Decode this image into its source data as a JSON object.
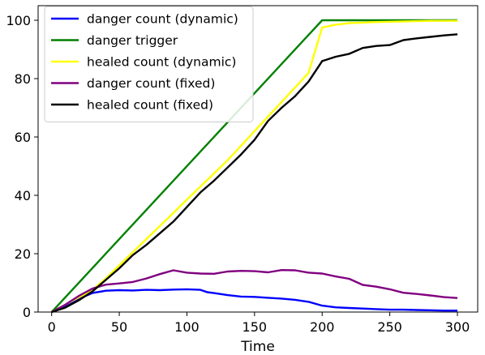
{
  "chart_data": {
    "type": "line",
    "xlabel": "Time",
    "ylabel": "",
    "xlim": [
      -10,
      315
    ],
    "ylim": [
      0,
      105
    ],
    "xticks": [
      0,
      50,
      100,
      150,
      200,
      250,
      300
    ],
    "yticks": [
      0,
      20,
      40,
      60,
      80,
      100
    ],
    "grid": false,
    "legend_position": "top-left",
    "series": [
      {
        "name": "danger count (dynamic)",
        "color": "#0000ff",
        "points": [
          [
            0,
            0
          ],
          [
            10,
            2
          ],
          [
            20,
            4.5
          ],
          [
            30,
            6.5
          ],
          [
            40,
            7.3
          ],
          [
            50,
            7.5
          ],
          [
            60,
            7.4
          ],
          [
            70,
            7.6
          ],
          [
            80,
            7.5
          ],
          [
            90,
            7.7
          ],
          [
            100,
            7.8
          ],
          [
            110,
            7.6
          ],
          [
            115,
            6.8
          ],
          [
            120,
            6.5
          ],
          [
            130,
            5.8
          ],
          [
            140,
            5.3
          ],
          [
            150,
            5.2
          ],
          [
            160,
            4.9
          ],
          [
            170,
            4.6
          ],
          [
            180,
            4.2
          ],
          [
            190,
            3.5
          ],
          [
            200,
            2.2
          ],
          [
            210,
            1.6
          ],
          [
            220,
            1.4
          ],
          [
            230,
            1.2
          ],
          [
            240,
            1.0
          ],
          [
            250,
            0.8
          ],
          [
            260,
            0.8
          ],
          [
            270,
            0.7
          ],
          [
            280,
            0.6
          ],
          [
            290,
            0.5
          ],
          [
            300,
            0.5
          ]
        ]
      },
      {
        "name": "danger trigger",
        "color": "#008000",
        "points": [
          [
            0,
            0
          ],
          [
            200,
            100
          ],
          [
            300,
            100
          ]
        ]
      },
      {
        "name": "healed count (dynamic)",
        "color": "#ffff00",
        "points": [
          [
            0,
            0
          ],
          [
            10,
            2.5
          ],
          [
            20,
            5
          ],
          [
            30,
            7.5
          ],
          [
            40,
            11.5
          ],
          [
            50,
            16
          ],
          [
            60,
            20.5
          ],
          [
            70,
            25
          ],
          [
            80,
            29.5
          ],
          [
            90,
            34
          ],
          [
            100,
            38.5
          ],
          [
            110,
            43
          ],
          [
            120,
            47.5
          ],
          [
            130,
            52
          ],
          [
            140,
            57
          ],
          [
            150,
            62
          ],
          [
            160,
            67
          ],
          [
            170,
            72
          ],
          [
            180,
            77
          ],
          [
            190,
            82
          ],
          [
            200,
            97.5
          ],
          [
            210,
            98.5
          ],
          [
            220,
            99
          ],
          [
            230,
            99.2
          ],
          [
            240,
            99.4
          ],
          [
            250,
            99.5
          ],
          [
            260,
            99.6
          ],
          [
            270,
            99.7
          ],
          [
            280,
            99.8
          ],
          [
            290,
            99.8
          ],
          [
            300,
            99.8
          ]
        ]
      },
      {
        "name": "danger count (fixed)",
        "color": "#800080",
        "points": [
          [
            0,
            0
          ],
          [
            10,
            2.5
          ],
          [
            20,
            5.5
          ],
          [
            30,
            8
          ],
          [
            40,
            9.4
          ],
          [
            50,
            9.8
          ],
          [
            60,
            10.3
          ],
          [
            70,
            11.5
          ],
          [
            80,
            13
          ],
          [
            90,
            14.3
          ],
          [
            100,
            13.5
          ],
          [
            110,
            13.2
          ],
          [
            120,
            13.1
          ],
          [
            130,
            13.9
          ],
          [
            140,
            14.1
          ],
          [
            150,
            14.0
          ],
          [
            160,
            13.6
          ],
          [
            170,
            14.4
          ],
          [
            180,
            14.3
          ],
          [
            190,
            13.5
          ],
          [
            200,
            13.2
          ],
          [
            210,
            12.2
          ],
          [
            220,
            11.4
          ],
          [
            230,
            9.3
          ],
          [
            240,
            8.7
          ],
          [
            250,
            7.8
          ],
          [
            260,
            6.6
          ],
          [
            270,
            6.2
          ],
          [
            280,
            5.7
          ],
          [
            290,
            5.1
          ],
          [
            300,
            4.8
          ]
        ]
      },
      {
        "name": "healed count (fixed)",
        "color": "#000000",
        "points": [
          [
            0,
            0
          ],
          [
            10,
            1.5
          ],
          [
            20,
            4
          ],
          [
            30,
            7
          ],
          [
            40,
            11
          ],
          [
            50,
            15
          ],
          [
            60,
            19.5
          ],
          [
            70,
            23
          ],
          [
            80,
            27
          ],
          [
            90,
            31
          ],
          [
            100,
            36
          ],
          [
            110,
            41
          ],
          [
            120,
            45
          ],
          [
            130,
            49.5
          ],
          [
            140,
            54
          ],
          [
            150,
            59
          ],
          [
            160,
            65.5
          ],
          [
            170,
            70
          ],
          [
            180,
            74
          ],
          [
            190,
            79
          ],
          [
            200,
            86
          ],
          [
            210,
            87.5
          ],
          [
            220,
            88.5
          ],
          [
            230,
            90.5
          ],
          [
            240,
            91.2
          ],
          [
            250,
            91.5
          ],
          [
            260,
            93.2
          ],
          [
            270,
            93.8
          ],
          [
            280,
            94.3
          ],
          [
            290,
            94.8
          ],
          [
            300,
            95.2
          ]
        ]
      }
    ]
  }
}
